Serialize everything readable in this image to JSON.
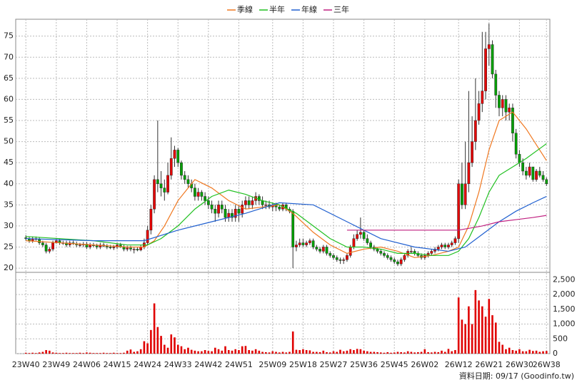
{
  "chart_data": {
    "type": "candlestick",
    "xlim": [
      -3,
      155
    ],
    "xticks": [
      {
        "value": 0,
        "label": "23W40"
      },
      {
        "value": 9,
        "label": "23W49"
      },
      {
        "value": 18,
        "label": "24W06"
      },
      {
        "value": 27,
        "label": "24W15"
      },
      {
        "value": 36,
        "label": "24W24"
      },
      {
        "value": 45,
        "label": "24W33"
      },
      {
        "value": 54,
        "label": "24W42"
      },
      {
        "value": 63,
        "label": "24W51"
      },
      {
        "value": 73,
        "label": "25W09"
      },
      {
        "value": 82,
        "label": "25W18"
      },
      {
        "value": 91,
        "label": "25W27"
      },
      {
        "value": 100,
        "label": "25W36"
      },
      {
        "value": 109,
        "label": "25W45"
      },
      {
        "value": 118,
        "label": "26W02"
      },
      {
        "value": 128,
        "label": "26W12"
      },
      {
        "value": 137,
        "label": "26W21"
      },
      {
        "value": 146,
        "label": "26W30"
      },
      {
        "value": 154,
        "label": "26W38"
      }
    ],
    "ylim": [
      19,
      79
    ],
    "yticks": [
      20,
      25,
      30,
      35,
      40,
      45,
      50,
      55,
      60,
      65,
      70,
      75
    ],
    "grid": true,
    "up_color": "#e60000",
    "down_color": "#00a000",
    "open": [
      27.2,
      27,
      26.5,
      27,
      26.8,
      26,
      25.5,
      24,
      24.5,
      26,
      26.5,
      26,
      26,
      25.5,
      26,
      25.8,
      25.5,
      25.5,
      25.7,
      25,
      25.5,
      25.3,
      25,
      25.5,
      25.2,
      25,
      24.8,
      25,
      25.5,
      25,
      24.5,
      24.8,
      24.5,
      24.5,
      24.3,
      25,
      26,
      29,
      34,
      41,
      40,
      39,
      38,
      42,
      46,
      48,
      45,
      42,
      41,
      40,
      39,
      37,
      38,
      37,
      36,
      35,
      34,
      33,
      35,
      34,
      32,
      33,
      32,
      34,
      33,
      35,
      36,
      35,
      36,
      37,
      36,
      35,
      35,
      34.5,
      35,
      34.5,
      34,
      35,
      34,
      33.5,
      25,
      25.5,
      26,
      25.5,
      26,
      26.5,
      25,
      24.5,
      24,
      25,
      23.5,
      23,
      22.5,
      22,
      21.8,
      22,
      23,
      25,
      27,
      28,
      28.5,
      27,
      26,
      25,
      24.5,
      24,
      23.5,
      23,
      22.5,
      22,
      21.5,
      21,
      22,
      23,
      24,
      24,
      23.5,
      23,
      22.5,
      23,
      23.5,
      24,
      24.5,
      25,
      25.5,
      25,
      25.5,
      26,
      27,
      40,
      35,
      40,
      45,
      50,
      55,
      59,
      62,
      72,
      73,
      66,
      61,
      58,
      60,
      57,
      58,
      52,
      47,
      45,
      43,
      42,
      44,
      41,
      43,
      42,
      41
    ],
    "high": [
      27.8,
      27.5,
      27.5,
      27.5,
      27.3,
      26.5,
      26,
      25,
      26.5,
      27,
      27,
      26.5,
      26.5,
      26.5,
      26.5,
      26.3,
      26,
      26.2,
      26.2,
      26,
      26,
      25.8,
      26,
      26,
      25.7,
      25.5,
      25.5,
      26,
      26,
      25.5,
      25.3,
      25.3,
      25,
      25,
      25.5,
      27,
      30,
      35,
      42,
      55,
      43,
      41,
      45,
      51,
      49,
      48.5,
      45.5,
      43,
      42,
      41,
      40,
      39,
      38.5,
      38,
      37,
      36,
      35,
      36,
      36,
      35,
      34,
      34,
      35,
      35,
      36,
      37,
      37,
      37,
      38,
      37.5,
      37,
      36,
      36,
      35.5,
      35.5,
      35,
      35.5,
      35.5,
      34.5,
      34,
      26.5,
      27,
      27,
      26.5,
      27,
      27,
      25.5,
      25,
      25.5,
      25.5,
      24,
      23.5,
      23,
      22.5,
      22.5,
      23.5,
      25.5,
      28,
      29,
      32,
      29,
      28,
      26.5,
      25.5,
      25,
      24.5,
      24,
      23.5,
      23,
      22.5,
      22,
      22.5,
      23.5,
      24.5,
      25,
      24.5,
      24,
      23.5,
      23.5,
      24,
      24.5,
      25,
      25.5,
      26,
      26,
      26,
      26.5,
      27.5,
      41,
      45,
      50,
      62,
      56,
      65,
      62,
      76,
      76,
      78,
      74,
      67,
      62,
      61,
      61,
      59,
      59,
      53,
      48,
      46,
      44,
      45,
      44,
      43.5,
      44,
      43,
      41.5
    ],
    "low": [
      26.5,
      26,
      26,
      26.5,
      25.5,
      25,
      23.5,
      23.5,
      24,
      25.8,
      25.5,
      25.5,
      25,
      25,
      25.5,
      25,
      25,
      25,
      24.5,
      24.5,
      25,
      24.5,
      24.5,
      25,
      24.5,
      24.5,
      24.3,
      24.5,
      24.8,
      24,
      24,
      24,
      23.5,
      24,
      24,
      24.5,
      25.5,
      28,
      33,
      38,
      37,
      36,
      37.5,
      41,
      44,
      44,
      41,
      40,
      39,
      38,
      36,
      36,
      36,
      35,
      34,
      33,
      31,
      32,
      33,
      31,
      31,
      31,
      31,
      31,
      32,
      34,
      34,
      34,
      35,
      35,
      34,
      34,
      34,
      33.5,
      33.5,
      33.5,
      33.5,
      33.5,
      33,
      20,
      24,
      25,
      25,
      25,
      25.5,
      24.5,
      24,
      23.5,
      23.5,
      23,
      22.5,
      22,
      21.5,
      21,
      21,
      21.5,
      22.5,
      24.5,
      26.5,
      27,
      26.5,
      25.5,
      24.5,
      24,
      23.5,
      23,
      22.5,
      22,
      21.5,
      21,
      20.5,
      20.5,
      21.5,
      22.5,
      23.5,
      23,
      22.5,
      22,
      22,
      22.5,
      23,
      23.5,
      24,
      24.5,
      24.5,
      24.5,
      25,
      25.5,
      26,
      34,
      34,
      38,
      44,
      48,
      54,
      57,
      60,
      68,
      65,
      58,
      56,
      56,
      55,
      55,
      50,
      46,
      44,
      42,
      41,
      41.5,
      40.5,
      40.5,
      41.5,
      40.5,
      39.5
    ],
    "close": [
      27,
      26.5,
      27,
      26.8,
      26,
      25.5,
      24,
      24.5,
      26,
      26.5,
      26,
      26,
      25.5,
      26,
      25.8,
      25.5,
      25.5,
      25.7,
      25,
      25.5,
      25.3,
      25,
      25.5,
      25.2,
      25,
      24.8,
      25,
      25.5,
      25,
      24.5,
      24.8,
      24.5,
      24.5,
      24.3,
      25,
      26,
      29,
      34,
      41,
      40,
      39,
      38,
      42,
      46,
      48,
      45,
      42,
      41,
      40,
      39,
      37,
      38,
      37,
      36,
      35,
      34,
      33,
      35,
      34,
      32,
      33,
      32,
      34,
      33,
      35,
      36,
      35,
      36,
      37,
      36,
      35,
      35,
      34.5,
      35,
      34.5,
      34,
      35,
      34,
      33.5,
      25,
      25.5,
      26,
      25.5,
      26,
      26.5,
      25,
      24.5,
      24,
      25,
      23.5,
      23,
      22.5,
      22,
      21.8,
      22,
      23,
      25,
      27,
      28,
      28.5,
      27,
      26,
      25,
      24.5,
      24,
      23.5,
      23,
      22.5,
      22,
      21.5,
      21,
      22,
      23,
      24,
      24,
      23.5,
      23,
      22.5,
      23,
      23.5,
      24,
      24.5,
      25,
      25.5,
      25,
      25.5,
      26,
      27,
      40,
      35,
      40,
      45,
      50,
      55,
      59,
      62,
      72,
      73,
      66,
      61,
      58,
      60,
      57,
      58,
      52,
      47,
      45,
      43,
      42,
      44,
      41,
      43,
      42,
      41,
      40
    ],
    "series": [
      {
        "name": "季線",
        "color": "#f07820",
        "x": [
          0,
          10,
          20,
          30,
          35,
          38,
          41,
          45,
          50,
          55,
          60,
          65,
          70,
          75,
          79,
          85,
          90,
          95,
          100,
          105,
          110,
          115,
          120,
          125,
          128,
          131,
          134,
          137,
          140,
          144,
          148,
          152,
          154
        ],
        "values": [
          26.5,
          26,
          25.5,
          25,
          25,
          26.5,
          30,
          36,
          41,
          39,
          36,
          34,
          34.5,
          35,
          33,
          28.5,
          25.5,
          23.5,
          24.5,
          25,
          24,
          22.5,
          23,
          24,
          25,
          30,
          38,
          48,
          55,
          57,
          53,
          48,
          45.5
        ]
      },
      {
        "name": "半年",
        "color": "#20c020",
        "x": [
          0,
          10,
          20,
          30,
          36,
          40,
          45,
          50,
          55,
          60,
          65,
          70,
          75,
          80,
          85,
          90,
          95,
          100,
          105,
          110,
          115,
          120,
          125,
          128,
          131,
          134,
          137,
          140,
          144,
          148,
          154
        ],
        "values": [
          27.5,
          27,
          26.5,
          25.5,
          25.5,
          27,
          30,
          34,
          37,
          38.5,
          37.5,
          36,
          35,
          33,
          30,
          27,
          25,
          25,
          24.5,
          23.5,
          23.5,
          23,
          23,
          24,
          27,
          32,
          38,
          42,
          44,
          46,
          49.5
        ]
      },
      {
        "name": "年線",
        "color": "#2060d0",
        "x": [
          0,
          20,
          35,
          45,
          55,
          65,
          75,
          85,
          95,
          105,
          115,
          125,
          130,
          135,
          140,
          145,
          150,
          154
        ],
        "values": [
          27,
          26.5,
          26.5,
          29,
          31,
          33,
          35.5,
          35,
          31,
          27,
          25,
          24,
          25,
          28,
          31,
          33.5,
          35.5,
          37
        ]
      },
      {
        "name": "三年",
        "color": "#c02080",
        "x": [
          95,
          110,
          128,
          135,
          140,
          145,
          150,
          154
        ],
        "values": [
          29,
          29,
          29,
          30,
          31,
          31.5,
          32,
          32.5
        ]
      }
    ],
    "volume": {
      "color": "#e00000",
      "ylim": [
        0,
        2750
      ],
      "yticks": [
        0,
        500,
        {
          "value": 1000,
          "label": "1,000"
        },
        {
          "value": 1500,
          "label": "1,500"
        },
        {
          "value": 2000,
          "label": "2,000"
        },
        {
          "value": 2500,
          "label": "2,500"
        }
      ],
      "values": [
        30,
        20,
        30,
        20,
        40,
        60,
        120,
        100,
        40,
        30,
        20,
        20,
        30,
        20,
        20,
        20,
        30,
        20,
        40,
        30,
        20,
        20,
        20,
        30,
        20,
        20,
        30,
        20,
        20,
        30,
        100,
        140,
        60,
        80,
        150,
        420,
        350,
        800,
        1700,
        900,
        600,
        300,
        200,
        650,
        550,
        300,
        250,
        150,
        200,
        130,
        100,
        80,
        80,
        120,
        90,
        80,
        200,
        150,
        100,
        250,
        120,
        100,
        150,
        120,
        250,
        260,
        120,
        100,
        150,
        100,
        60,
        50,
        40,
        80,
        60,
        40,
        60,
        40,
        60,
        750,
        130,
        120,
        150,
        120,
        110,
        60,
        60,
        50,
        100,
        50,
        40,
        80,
        60,
        130,
        80,
        100,
        150,
        120,
        160,
        150,
        100,
        80,
        60,
        60,
        50,
        40,
        30,
        50,
        30,
        40,
        60,
        50,
        40,
        80,
        60,
        40,
        50,
        60,
        150,
        50,
        40,
        60,
        50,
        100,
        60,
        160,
        80,
        120,
        1900,
        1150,
        1000,
        1600,
        1000,
        2150,
        1800,
        1600,
        1250,
        1850,
        1300,
        1050,
        400,
        300,
        150,
        200,
        120,
        100,
        150,
        80,
        80,
        130,
        90,
        100,
        60,
        80,
        90
      ]
    },
    "footer": "資料日期: 09/17  (Goodinfo.tw)"
  }
}
